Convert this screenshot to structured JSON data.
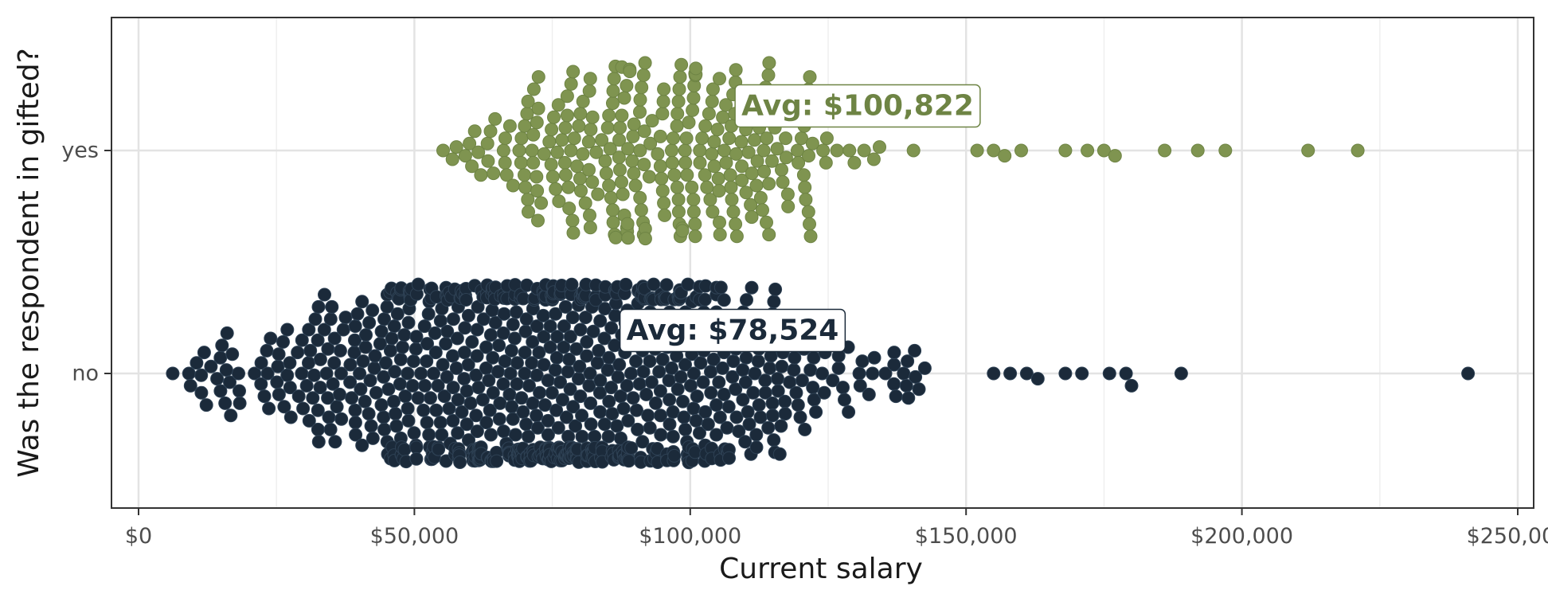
{
  "chart_data": {
    "type": "beeswarm",
    "title": "",
    "xlabel": "Current salary",
    "ylabel": "Was the respondent in gifted?",
    "xlim": [
      -5000,
      252000
    ],
    "x_ticks": [
      0,
      50000,
      100000,
      150000,
      200000,
      250000
    ],
    "x_tick_labels": [
      "$0",
      "$50,000",
      "$100,000",
      "$150,000",
      "$200,000",
      "$250,000"
    ],
    "categories": [
      "yes",
      "no"
    ],
    "grid": true,
    "series": [
      {
        "name": "yes",
        "color": "#7f9450",
        "stroke": "#6e8444",
        "count": 300,
        "average": 100822,
        "average_label": "Avg: $100,822",
        "bulk_range": [
          55000,
          150000
        ],
        "outliers": [
          152000,
          155000,
          157000,
          160000,
          168000,
          172000,
          175000,
          177000,
          186000,
          192000,
          197000,
          212000,
          221000
        ]
      },
      {
        "name": "no",
        "color": "#1b2a3a",
        "stroke": "#2e4154",
        "count": 900,
        "average": 78524,
        "average_label": "Avg: $78,524",
        "bulk_range": [
          6000,
          150000
        ],
        "outliers": [
          155000,
          158000,
          161000,
          163000,
          168000,
          171000,
          176000,
          179000,
          180000,
          189000,
          241000
        ]
      }
    ]
  }
}
